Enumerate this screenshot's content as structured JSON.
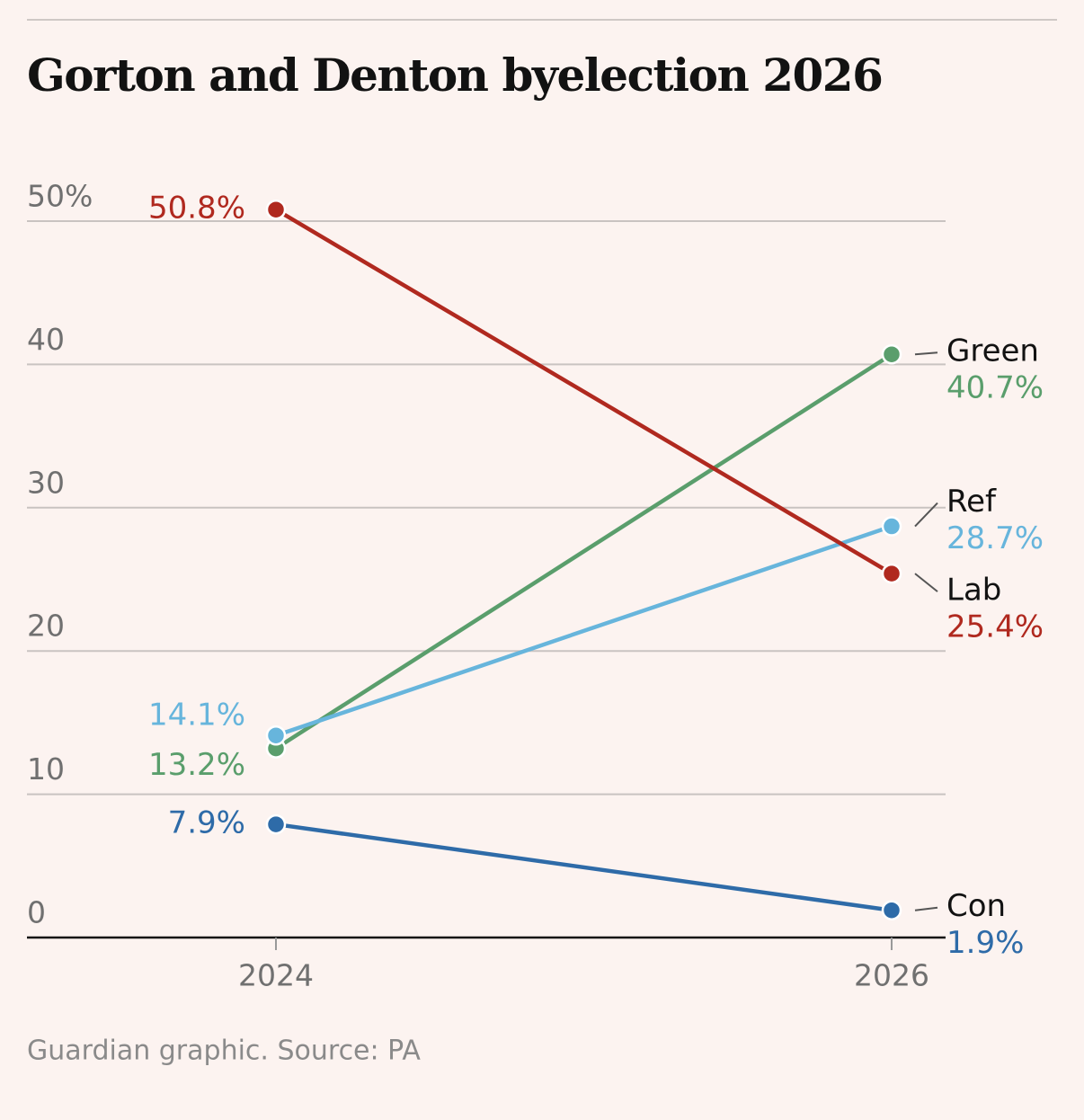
{
  "chart_data": {
    "type": "line",
    "title": "Gorton and Denton byelection 2026",
    "source": "Guardian graphic. Source: PA",
    "categories": [
      "2024",
      "2026"
    ],
    "series": [
      {
        "name": "Green",
        "color": "#5a9e6c",
        "values": [
          13.2,
          40.7
        ],
        "value_labels": [
          "13.2%",
          "40.7%"
        ]
      },
      {
        "name": "Ref",
        "color": "#67b5dc",
        "values": [
          14.1,
          28.7
        ],
        "value_labels": [
          "14.1%",
          "28.7%"
        ]
      },
      {
        "name": "Lab",
        "color": "#b0291f",
        "values": [
          50.8,
          25.4
        ],
        "value_labels": [
          "50.8%",
          "25.4%"
        ]
      },
      {
        "name": "Con",
        "color": "#2e6ba8",
        "values": [
          7.9,
          1.9
        ],
        "value_labels": [
          "7.9%",
          "1.9%"
        ]
      }
    ],
    "ylim": [
      0,
      50
    ],
    "yticks": [
      0,
      10,
      20,
      30,
      40,
      {
        "value": 50,
        "label": "50%"
      }
    ],
    "grid": true
  }
}
